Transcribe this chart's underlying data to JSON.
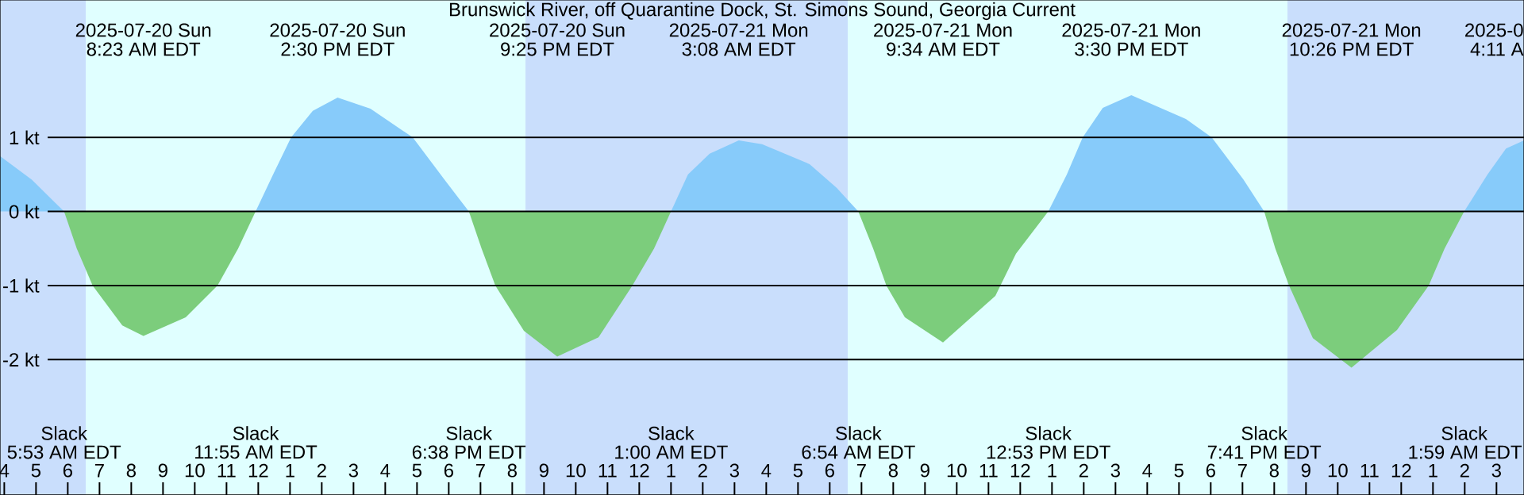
{
  "chart_data": {
    "type": "area",
    "title": "Brunswick River, off Quarantine Dock, St. Simons Sound, Georgia Current",
    "xlim": [
      "2025-07-20T03:52",
      "2025-07-22T03:52"
    ],
    "ylim": [
      -3.829,
      2.857
    ],
    "xticks": [
      {
        "value": "2025-07-20T04:00",
        "label": "4"
      },
      {
        "value": "2025-07-20T05:00",
        "label": "5"
      },
      {
        "value": "2025-07-20T06:00",
        "label": "6"
      },
      {
        "value": "2025-07-20T07:00",
        "label": "7"
      },
      {
        "value": "2025-07-20T08:00",
        "label": "8"
      },
      {
        "value": "2025-07-20T09:00",
        "label": "9"
      },
      {
        "value": "2025-07-20T10:00",
        "label": "10"
      },
      {
        "value": "2025-07-20T11:00",
        "label": "11"
      },
      {
        "value": "2025-07-20T12:00",
        "label": "12"
      },
      {
        "value": "2025-07-20T13:00",
        "label": "1"
      },
      {
        "value": "2025-07-20T14:00",
        "label": "2"
      },
      {
        "value": "2025-07-20T15:00",
        "label": "3"
      },
      {
        "value": "2025-07-20T16:00",
        "label": "4"
      },
      {
        "value": "2025-07-20T17:00",
        "label": "5"
      },
      {
        "value": "2025-07-20T18:00",
        "label": "6"
      },
      {
        "value": "2025-07-20T19:00",
        "label": "7"
      },
      {
        "value": "2025-07-20T20:00",
        "label": "8"
      },
      {
        "value": "2025-07-20T21:00",
        "label": "9"
      },
      {
        "value": "2025-07-20T22:00",
        "label": "10"
      },
      {
        "value": "2025-07-20T23:00",
        "label": "11"
      },
      {
        "value": "2025-07-21T00:00",
        "label": "12"
      },
      {
        "value": "2025-07-21T01:00",
        "label": "1"
      },
      {
        "value": "2025-07-21T02:00",
        "label": "2"
      },
      {
        "value": "2025-07-21T03:00",
        "label": "3"
      },
      {
        "value": "2025-07-21T04:00",
        "label": "4"
      },
      {
        "value": "2025-07-21T05:00",
        "label": "5"
      },
      {
        "value": "2025-07-21T06:00",
        "label": "6"
      },
      {
        "value": "2025-07-21T07:00",
        "label": "7"
      },
      {
        "value": "2025-07-21T08:00",
        "label": "8"
      },
      {
        "value": "2025-07-21T09:00",
        "label": "9"
      },
      {
        "value": "2025-07-21T10:00",
        "label": "10"
      },
      {
        "value": "2025-07-21T11:00",
        "label": "11"
      },
      {
        "value": "2025-07-21T12:00",
        "label": "12"
      },
      {
        "value": "2025-07-21T13:00",
        "label": "1"
      },
      {
        "value": "2025-07-21T14:00",
        "label": "2"
      },
      {
        "value": "2025-07-21T15:00",
        "label": "3"
      },
      {
        "value": "2025-07-21T16:00",
        "label": "4"
      },
      {
        "value": "2025-07-21T17:00",
        "label": "5"
      },
      {
        "value": "2025-07-21T18:00",
        "label": "6"
      },
      {
        "value": "2025-07-21T19:00",
        "label": "7"
      },
      {
        "value": "2025-07-21T20:00",
        "label": "8"
      },
      {
        "value": "2025-07-21T21:00",
        "label": "9"
      },
      {
        "value": "2025-07-21T22:00",
        "label": "10"
      },
      {
        "value": "2025-07-21T23:00",
        "label": "11"
      },
      {
        "value": "2025-07-22T00:00",
        "label": "12"
      },
      {
        "value": "2025-07-22T01:00",
        "label": "1"
      },
      {
        "value": "2025-07-22T02:00",
        "label": "2"
      },
      {
        "value": "2025-07-22T03:00",
        "label": "3"
      }
    ],
    "yticks": [
      {
        "value": 1,
        "label": "1 kt"
      },
      {
        "value": 0,
        "label": "0 kt"
      },
      {
        "value": -1,
        "label": "-1 kt"
      },
      {
        "value": -2,
        "label": "-2 kt"
      }
    ],
    "grid": "y",
    "bands": [
      {
        "axis": "x",
        "from": "2025-07-20T03:52",
        "to": "2025-07-20T06:34",
        "color": "#c9defc"
      },
      {
        "axis": "x",
        "from": "2025-07-20T06:34",
        "to": "2025-07-20T20:25",
        "color": "#e0ffff"
      },
      {
        "axis": "x",
        "from": "2025-07-20T20:25",
        "to": "2025-07-21T06:34",
        "color": "#c9defc"
      },
      {
        "axis": "x",
        "from": "2025-07-21T06:34",
        "to": "2025-07-21T20:25",
        "color": "#e0ffff"
      },
      {
        "axis": "x",
        "from": "2025-07-21T20:25",
        "to": "2025-07-22T03:52",
        "color": "#c9defc"
      }
    ],
    "series": [
      {
        "color": "#87cbfa",
        "x": [
          "2025-07-20T03:52",
          "2025-07-20T04:52",
          "2025-07-20T05:53",
          "2025-07-20T08:30",
          "2025-07-20T11:55",
          "2025-07-20T12:28",
          "2025-07-20T13:02",
          "2025-07-20T13:43",
          "2025-07-20T14:30",
          "2025-07-20T15:32",
          "2025-07-20T16:52",
          "2025-07-20T17:52",
          "2025-07-20T18:38",
          "2025-07-20T21:30",
          "2025-07-21T01:00",
          "2025-07-21T01:32",
          "2025-07-21T02:13",
          "2025-07-21T03:08",
          "2025-07-21T03:52",
          "2025-07-21T05:22",
          "2025-07-21T06:13",
          "2025-07-21T06:54",
          "2025-07-21T09:30",
          "2025-07-21T12:53",
          "2025-07-21T13:28",
          "2025-07-21T13:58",
          "2025-07-21T14:36",
          "2025-07-21T15:30",
          "2025-07-21T17:13",
          "2025-07-21T18:02",
          "2025-07-21T19:02",
          "2025-07-21T19:41",
          "2025-07-21T22:30",
          "2025-07-22T01:59",
          "2025-07-22T02:43",
          "2025-07-22T03:18",
          "2025-07-22T03:52"
        ],
        "values": [
          0.75,
          0.43,
          0,
          null,
          0,
          0.5,
          1.0,
          1.36,
          1.54,
          1.39,
          1.0,
          0.43,
          0,
          null,
          0,
          0.5,
          0.78,
          0.96,
          0.91,
          0.64,
          0.32,
          0,
          null,
          0,
          0.5,
          1.0,
          1.4,
          1.57,
          1.25,
          1.0,
          0.43,
          0,
          null,
          0,
          0.5,
          0.85,
          0.96
        ]
      },
      {
        "color": "#7ccd7c",
        "x": [
          "2025-07-20T05:53",
          "2025-07-20T06:17",
          "2025-07-20T06:47",
          "2025-07-20T07:43",
          "2025-07-20T08:23",
          "2025-07-20T09:43",
          "2025-07-20T10:43",
          "2025-07-20T11:22",
          "2025-07-20T11:55",
          "2025-07-20T15:00",
          "2025-07-20T18:38",
          "2025-07-20T19:02",
          "2025-07-20T19:28",
          "2025-07-20T20:22",
          "2025-07-20T21:25",
          "2025-07-20T22:43",
          "2025-07-20T23:47",
          "2025-07-21T00:28",
          "2025-07-21T01:00",
          "2025-07-21T04:00",
          "2025-07-21T06:54",
          "2025-07-21T07:22",
          "2025-07-21T07:47",
          "2025-07-21T08:22",
          "2025-07-21T09:34",
          "2025-07-21T11:13",
          "2025-07-21T11:52",
          "2025-07-21T12:53",
          "2025-07-21T16:00",
          "2025-07-21T19:41",
          "2025-07-21T20:02",
          "2025-07-21T20:28",
          "2025-07-21T21:13",
          "2025-07-21T22:26",
          "2025-07-21T23:52",
          "2025-07-22T00:52",
          "2025-07-22T01:22",
          "2025-07-22T01:59"
        ],
        "values": [
          0,
          -0.5,
          -1.0,
          -1.54,
          -1.68,
          -1.43,
          -1.0,
          -0.5,
          0,
          null,
          0,
          -0.5,
          -1.0,
          -1.61,
          -1.96,
          -1.7,
          -1.0,
          -0.5,
          0,
          null,
          0,
          -0.5,
          -1.0,
          -1.43,
          -1.77,
          -1.14,
          -0.57,
          0,
          null,
          0,
          -0.5,
          -1.0,
          -1.71,
          -2.11,
          -1.6,
          -1.0,
          -0.5,
          0
        ]
      }
    ],
    "annotations": [
      "2025-07-20 Sun",
      "8:23 AM EDT",
      "2025-07-20 Sun",
      "2:30 PM EDT",
      "2025-07-20 Sun",
      "9:25 PM EDT",
      "2025-07-21 Mon",
      "3:08 AM EDT",
      "2025-07-21 Mon",
      "9:34 AM EDT",
      "2025-07-21 Mon",
      "3:30 PM EDT",
      "2025-07-21 Mon",
      "10:26 PM EDT",
      "2025-0",
      "4:11 A",
      "Slack",
      "5:53 AM EDT",
      "Slack",
      "11:55 AM EDT",
      "Slack",
      "6:38 PM EDT",
      "Slack",
      "1:00 AM EDT",
      "Slack",
      "6:54 AM EDT",
      "Slack",
      "12:53 PM EDT",
      "Slack",
      "7:41 PM EDT",
      "Slack",
      "1:59 AM EDT"
    ]
  }
}
